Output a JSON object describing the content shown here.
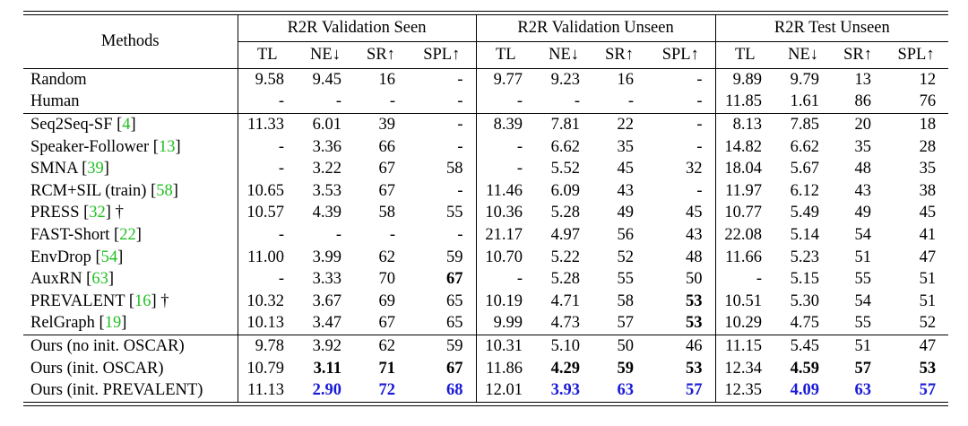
{
  "header": {
    "methods": "Methods",
    "groups": [
      {
        "title": "R2R Validation Seen",
        "columns": [
          "TL",
          "NE↓",
          "SR↑",
          "SPL↑"
        ]
      },
      {
        "title": "R2R Validation Unseen",
        "columns": [
          "TL",
          "NE↓",
          "SR↑",
          "SPL↑"
        ]
      },
      {
        "title": "R2R Test Unseen",
        "columns": [
          "TL",
          "NE↓",
          "SR↑",
          "SPL↑"
        ]
      }
    ]
  },
  "sections": [
    {
      "rows": [
        {
          "method": [
            "Random"
          ],
          "cells": [
            "9.58",
            "9.45",
            "16",
            "-",
            "9.77",
            "9.23",
            "16",
            "-",
            "9.89",
            "9.79",
            "13",
            "12"
          ]
        },
        {
          "method": [
            "Human"
          ],
          "cells": [
            "-",
            "-",
            "-",
            "-",
            "-",
            "-",
            "-",
            "-",
            "11.85",
            "1.61",
            "86",
            "76"
          ]
        }
      ]
    },
    {
      "rows": [
        {
          "method": [
            "Seq2Seq-SF [",
            "4",
            "]"
          ],
          "cells": [
            "11.33",
            "6.01",
            "39",
            "-",
            "8.39",
            "7.81",
            "22",
            "-",
            "8.13",
            "7.85",
            "20",
            "18"
          ]
        },
        {
          "method": [
            "Speaker-Follower [",
            "13",
            "]"
          ],
          "cells": [
            "-",
            "3.36",
            "66",
            "-",
            "-",
            "6.62",
            "35",
            "-",
            "14.82",
            "6.62",
            "35",
            "28"
          ]
        },
        {
          "method": [
            "SMNA [",
            "39",
            "]"
          ],
          "cells": [
            "-",
            "3.22",
            "67",
            "58",
            "-",
            "5.52",
            "45",
            "32",
            "18.04",
            "5.67",
            "48",
            "35"
          ]
        },
        {
          "method": [
            "RCM+SIL (train) [",
            "58",
            "]"
          ],
          "cells": [
            "10.65",
            "3.53",
            "67",
            "-",
            "11.46",
            "6.09",
            "43",
            "-",
            "11.97",
            "6.12",
            "43",
            "38"
          ]
        },
        {
          "method": [
            "PRESS [",
            "32",
            "] †"
          ],
          "cells": [
            "10.57",
            "4.39",
            "58",
            "55",
            "10.36",
            "5.28",
            "49",
            "45",
            "10.77",
            "5.49",
            "49",
            "45"
          ]
        },
        {
          "method": [
            "FAST-Short [",
            "22",
            "]"
          ],
          "cells": [
            "-",
            "-",
            "-",
            "-",
            "21.17",
            "4.97",
            "56",
            "43",
            "22.08",
            "5.14",
            "54",
            "41"
          ]
        },
        {
          "method": [
            "EnvDrop [",
            "54",
            "]"
          ],
          "cells": [
            "11.00",
            "3.99",
            "62",
            "59",
            "10.70",
            "5.22",
            "52",
            "48",
            "11.66",
            "5.23",
            "51",
            "47"
          ]
        },
        {
          "method": [
            "AuxRN [",
            "63",
            "]"
          ],
          "cells": [
            "-",
            "3.33",
            "70",
            "67",
            "-",
            "5.28",
            "55",
            "50",
            "-",
            "5.15",
            "55",
            "51"
          ]
        },
        {
          "method": [
            "PREVALENT [",
            "16",
            "] †"
          ],
          "cells": [
            "10.32",
            "3.67",
            "69",
            "65",
            "10.19",
            "4.71",
            "58",
            "53",
            "10.51",
            "5.30",
            "54",
            "51"
          ]
        },
        {
          "method": [
            "RelGraph [",
            "19",
            "]"
          ],
          "cells": [
            "10.13",
            "3.47",
            "67",
            "65",
            "9.99",
            "4.73",
            "57",
            "53",
            "10.29",
            "4.75",
            "55",
            "52"
          ]
        }
      ]
    },
    {
      "rows": [
        {
          "method": [
            "Ours (no init. OSCAR)"
          ],
          "cells": [
            "9.78",
            "3.92",
            "62",
            "59",
            "10.31",
            "5.10",
            "50",
            "46",
            "11.15",
            "5.45",
            "51",
            "47"
          ]
        },
        {
          "method": [
            "Ours (init. OSCAR)"
          ],
          "cells": [
            "10.79",
            "3.11",
            "71",
            "67",
            "11.86",
            "4.29",
            "59",
            "53",
            "12.34",
            "4.59",
            "57",
            "53"
          ]
        },
        {
          "method": [
            "Ours (init. PREVALENT)"
          ],
          "cells": [
            "11.13",
            "2.90",
            "72",
            "68",
            "12.01",
            "3.93",
            "63",
            "57",
            "12.35",
            "4.09",
            "63",
            "57"
          ]
        }
      ]
    }
  ]
}
